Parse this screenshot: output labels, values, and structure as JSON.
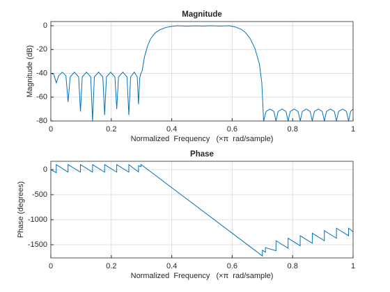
{
  "chart_data": [
    {
      "type": "line",
      "title": "Magnitude",
      "xlabel": "Normalized  Frequency   (×π  rad/sample)",
      "ylabel": "Magnitude (dB)",
      "x": [
        0,
        0.01,
        0.018,
        0.026,
        0.038,
        0.05,
        0.057,
        0.064,
        0.078,
        0.092,
        0.098,
        0.104,
        0.118,
        0.132,
        0.138,
        0.144,
        0.158,
        0.172,
        0.178,
        0.184,
        0.198,
        0.212,
        0.218,
        0.224,
        0.238,
        0.252,
        0.258,
        0.264,
        0.276,
        0.286,
        0.29,
        0.294,
        0.298,
        0.302,
        0.31,
        0.32,
        0.33,
        0.345,
        0.36,
        0.38,
        0.4,
        0.42,
        0.45,
        0.48,
        0.5,
        0.53,
        0.56,
        0.59,
        0.61,
        0.63,
        0.645,
        0.66,
        0.675,
        0.69,
        0.698,
        0.704,
        0.712,
        0.725,
        0.738,
        0.745,
        0.752,
        0.765,
        0.778,
        0.785,
        0.792,
        0.805,
        0.818,
        0.825,
        0.832,
        0.845,
        0.858,
        0.865,
        0.872,
        0.885,
        0.898,
        0.905,
        0.912,
        0.925,
        0.938,
        0.945,
        0.952,
        0.965,
        0.978,
        0.985,
        0.992,
        1
      ],
      "values": [
        -40,
        -41,
        -48,
        -42,
        -39,
        -42,
        -64,
        -43,
        -39,
        -43,
        -72,
        -43,
        -39,
        -43,
        -80,
        -43,
        -39,
        -43,
        -75,
        -43,
        -39,
        -43,
        -70,
        -43,
        -39,
        -43,
        -75,
        -43,
        -39,
        -43,
        -66,
        -44,
        -40,
        -38,
        -26,
        -17,
        -11,
        -6,
        -3.5,
        -1.5,
        -0.5,
        0,
        -0.4,
        -0.1,
        -0.3,
        0,
        -0.3,
        0,
        -1,
        -3,
        -6,
        -11,
        -19,
        -32,
        -48,
        -80,
        -72,
        -70,
        -72,
        -80,
        -72,
        -70,
        -72,
        -80,
        -72,
        -70,
        -72,
        -80,
        -72,
        -70,
        -72,
        -80,
        -72,
        -70,
        -72,
        -80,
        -72,
        -70,
        -72,
        -80,
        -72,
        -70,
        -72,
        -80,
        -72,
        -70
      ],
      "color": "#0072bd",
      "xlim": [
        0,
        1
      ],
      "xticks": [
        0,
        0.2,
        0.4,
        0.6,
        0.8,
        1
      ],
      "ylim": [
        -80,
        3.5
      ],
      "yticks": [
        0,
        -20,
        -40,
        -60,
        -80
      ],
      "grid": true
    },
    {
      "type": "line",
      "title": "Phase",
      "xlabel": "Normalized  Frequency   (×π  rad/sample)",
      "ylabel": "Phase (degrees)",
      "x": [
        0,
        0.018,
        0.018,
        0.057,
        0.057,
        0.098,
        0.098,
        0.138,
        0.138,
        0.178,
        0.178,
        0.218,
        0.218,
        0.258,
        0.258,
        0.29,
        0.29,
        0.298,
        0.298,
        0.7,
        0.7,
        0.71,
        0.71,
        0.745,
        0.745,
        0.785,
        0.785,
        0.825,
        0.825,
        0.865,
        0.865,
        0.905,
        0.905,
        0.945,
        0.945,
        0.985,
        0.985,
        1
      ],
      "values": [
        0,
        -60,
        100,
        -50,
        100,
        -50,
        100,
        -50,
        100,
        -50,
        100,
        -50,
        100,
        -50,
        100,
        -45,
        80,
        60,
        105,
        -1725,
        -1610,
        -1650,
        -1560,
        -1620,
        -1420,
        -1570,
        -1370,
        -1520,
        -1320,
        -1470,
        -1270,
        -1420,
        -1220,
        -1370,
        -1170,
        -1320,
        -1170,
        -1240
      ],
      "color": "#0072bd",
      "xlim": [
        0,
        1
      ],
      "xticks": [
        0,
        0.2,
        0.4,
        0.6,
        0.8,
        1
      ],
      "ylim": [
        -1764,
        167
      ],
      "yticks": [
        0,
        -500,
        -1000,
        -1500
      ],
      "grid": true
    }
  ]
}
